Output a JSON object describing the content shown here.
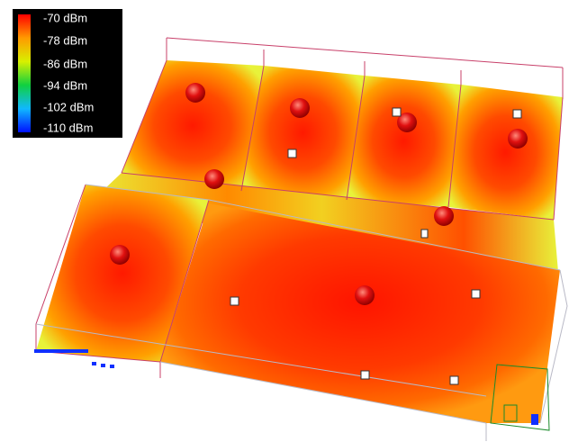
{
  "legend": {
    "labels": [
      "-70 dBm",
      "-78 dBm",
      "-86 dBm",
      "-94 dBm",
      "-102 dBm",
      "-110 dBm"
    ]
  }
}
